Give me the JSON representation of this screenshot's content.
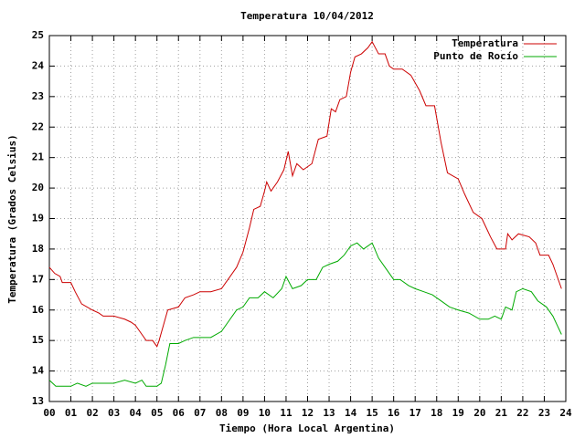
{
  "chart_data": {
    "type": "line",
    "title": "Temperatura 10/04/2012",
    "x_label": "Tiempo (Hora Local Argentina)",
    "y_label": "Temperatura (Grados Celsius)",
    "xlim": [
      0,
      24
    ],
    "ylim": [
      13,
      25
    ],
    "xticks": [
      {
        "value": 0,
        "label": "00"
      },
      {
        "value": 1,
        "label": "01"
      },
      {
        "value": 2,
        "label": "02"
      },
      {
        "value": 3,
        "label": "03"
      },
      {
        "value": 4,
        "label": "04"
      },
      {
        "value": 5,
        "label": "05"
      },
      {
        "value": 6,
        "label": "06"
      },
      {
        "value": 7,
        "label": "07"
      },
      {
        "value": 8,
        "label": "08"
      },
      {
        "value": 9,
        "label": "09"
      },
      10,
      11,
      12,
      13,
      14,
      15,
      16,
      17,
      18,
      19,
      20,
      21,
      22,
      23,
      24
    ],
    "yticks": [
      13,
      14,
      15,
      16,
      17,
      18,
      19,
      20,
      21,
      22,
      23,
      24,
      25
    ],
    "grid": true,
    "legend": "top-right",
    "series": [
      {
        "name": "Temperatura",
        "color": "#cc0000",
        "x": [
          0,
          0.25,
          0.5,
          0.6,
          1.0,
          1.2,
          1.5,
          2.0,
          2.3,
          2.5,
          3.0,
          3.5,
          3.8,
          4.0,
          4.2,
          4.5,
          4.8,
          5.0,
          5.1,
          5.3,
          5.5,
          6.0,
          6.3,
          6.7,
          7.0,
          7.5,
          8.0,
          8.3,
          8.7,
          9.0,
          9.3,
          9.5,
          9.8,
          10.0,
          10.1,
          10.3,
          10.6,
          10.9,
          11.1,
          11.3,
          11.5,
          11.8,
          12.2,
          12.5,
          12.9,
          13.1,
          13.3,
          13.5,
          13.8,
          14.0,
          14.2,
          14.5,
          14.8,
          15.0,
          15.3,
          15.6,
          15.8,
          16.0,
          16.4,
          16.8,
          17.2,
          17.5,
          17.9,
          18.2,
          18.5,
          19.0,
          19.3,
          19.7,
          20.1,
          20.5,
          20.8,
          21.2,
          21.3,
          21.5,
          21.8,
          22.3,
          22.6,
          22.8,
          23.2,
          23.4,
          23.6,
          23.8
        ],
        "values": [
          17.4,
          17.2,
          17.1,
          16.9,
          16.9,
          16.6,
          16.2,
          16.0,
          15.9,
          15.8,
          15.8,
          15.7,
          15.6,
          15.5,
          15.3,
          15.0,
          15.0,
          14.8,
          15.0,
          15.5,
          16.0,
          16.1,
          16.4,
          16.5,
          16.6,
          16.6,
          16.7,
          17.0,
          17.4,
          17.9,
          18.7,
          19.3,
          19.4,
          19.9,
          20.2,
          19.9,
          20.2,
          20.6,
          21.2,
          20.4,
          20.8,
          20.6,
          20.8,
          21.6,
          21.7,
          22.6,
          22.5,
          22.9,
          23.0,
          23.8,
          24.3,
          24.4,
          24.6,
          24.8,
          24.4,
          24.4,
          24.0,
          23.9,
          23.9,
          23.7,
          23.2,
          22.7,
          22.7,
          21.5,
          20.5,
          20.3,
          19.8,
          19.2,
          19.0,
          18.4,
          18.0,
          18.0,
          18.5,
          18.3,
          18.5,
          18.4,
          18.2,
          17.8,
          17.8,
          17.5,
          17.1,
          16.7
        ]
      },
      {
        "name": "Punto de Rocío",
        "color": "#00aa00",
        "x": [
          0,
          0.3,
          0.7,
          1.0,
          1.3,
          1.7,
          2.0,
          2.5,
          3.0,
          3.5,
          4.0,
          4.3,
          4.5,
          5.0,
          5.2,
          5.4,
          5.6,
          6.0,
          6.3,
          6.7,
          7.0,
          7.5,
          8.0,
          8.3,
          8.7,
          9.0,
          9.3,
          9.7,
          10.0,
          10.4,
          10.8,
          11.0,
          11.3,
          11.7,
          12.0,
          12.4,
          12.7,
          13.0,
          13.4,
          13.7,
          14.0,
          14.3,
          14.6,
          15.0,
          15.3,
          15.6,
          16.0,
          16.3,
          16.7,
          17.0,
          17.4,
          17.8,
          18.2,
          18.6,
          19.0,
          19.5,
          20.0,
          20.4,
          20.7,
          21.0,
          21.2,
          21.5,
          21.7,
          22.0,
          22.4,
          22.7,
          23.1,
          23.4,
          23.6,
          23.8
        ],
        "values": [
          13.7,
          13.5,
          13.5,
          13.5,
          13.6,
          13.5,
          13.6,
          13.6,
          13.6,
          13.7,
          13.6,
          13.7,
          13.5,
          13.5,
          13.6,
          14.2,
          14.9,
          14.9,
          15.0,
          15.1,
          15.1,
          15.1,
          15.3,
          15.6,
          16.0,
          16.1,
          16.4,
          16.4,
          16.6,
          16.4,
          16.7,
          17.1,
          16.7,
          16.8,
          17.0,
          17.0,
          17.4,
          17.5,
          17.6,
          17.8,
          18.1,
          18.2,
          18.0,
          18.2,
          17.7,
          17.4,
          17.0,
          17.0,
          16.8,
          16.7,
          16.6,
          16.5,
          16.3,
          16.1,
          16.0,
          15.9,
          15.7,
          15.7,
          15.8,
          15.7,
          16.1,
          16.0,
          16.6,
          16.7,
          16.6,
          16.3,
          16.1,
          15.8,
          15.5,
          15.2
        ]
      }
    ]
  }
}
